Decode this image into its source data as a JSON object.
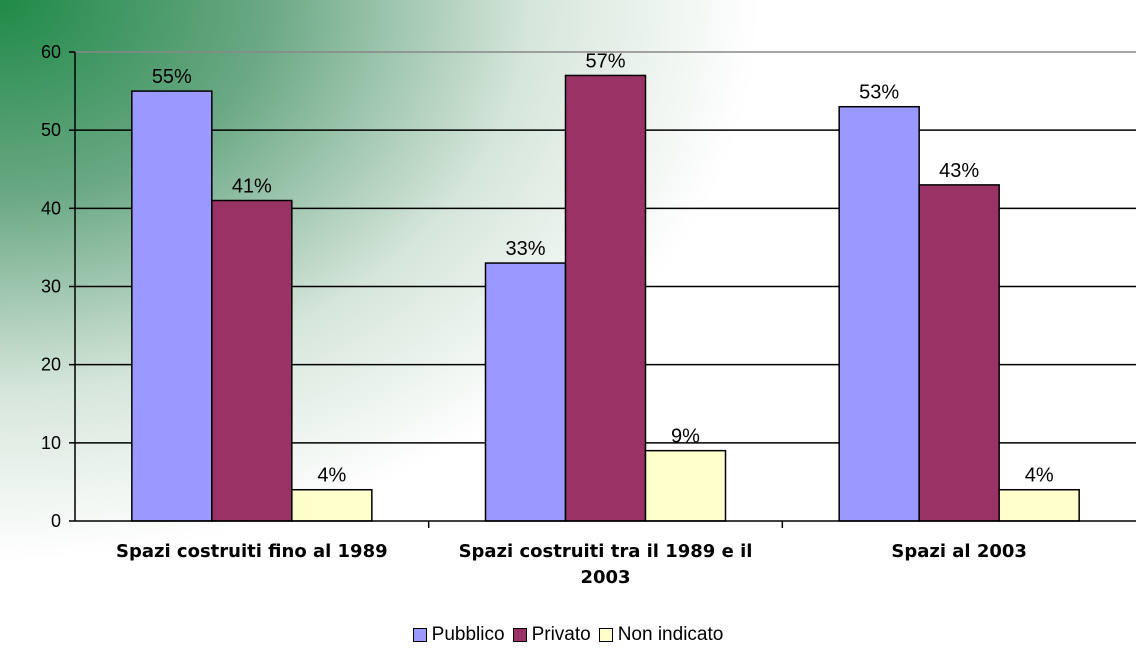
{
  "chart_data": {
    "type": "bar",
    "categories": [
      [
        "Spazi costruiti fino al 1989"
      ],
      [
        "Spazi costruiti tra il 1989 e il",
        "2003"
      ],
      [
        "Spazi al 2003"
      ]
    ],
    "series": [
      {
        "name": "Pubblico",
        "values": [
          55,
          33,
          53
        ],
        "labels": [
          "55%",
          "33%",
          "53%"
        ],
        "color": "#9999ff"
      },
      {
        "name": "Privato",
        "values": [
          41,
          57,
          43
        ],
        "labels": [
          "41%",
          "57%",
          "43%"
        ],
        "color": "#993366"
      },
      {
        "name": "Non indicato",
        "values": [
          4,
          9,
          4
        ],
        "labels": [
          "4%",
          "9%",
          "4%"
        ],
        "color": "#ffffcc"
      }
    ],
    "ylim": [
      0,
      60
    ],
    "yticks": [
      0,
      10,
      20,
      30,
      40,
      50,
      60
    ],
    "grid": true,
    "legend_position": "bottom",
    "background": "green gradient from top-left fading to white"
  }
}
